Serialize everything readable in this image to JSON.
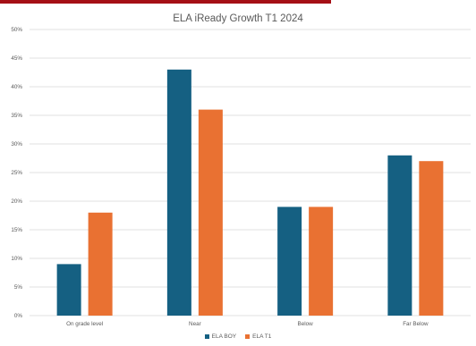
{
  "colors": {
    "accent": "#a50f15",
    "series_boy": "#156082",
    "series_t1": "#e97132",
    "grid": "#d9d9d9",
    "text": "#595959"
  },
  "chart_data": {
    "type": "bar",
    "title": "ELA iReady Growth T1 2024",
    "categories": [
      "On grade level",
      "Near",
      "Below",
      "Far Below"
    ],
    "series": [
      {
        "name": "ELA BOY",
        "values": [
          9,
          43,
          19,
          28
        ]
      },
      {
        "name": "ELA T1",
        "values": [
          18,
          36,
          19,
          27
        ]
      }
    ],
    "ylim": [
      0,
      50
    ],
    "yticks": [
      "0%",
      "5%",
      "10%",
      "15%",
      "20%",
      "25%",
      "30%",
      "35%",
      "40%",
      "45%",
      "50%"
    ],
    "grid": true,
    "legend": "bottom"
  }
}
